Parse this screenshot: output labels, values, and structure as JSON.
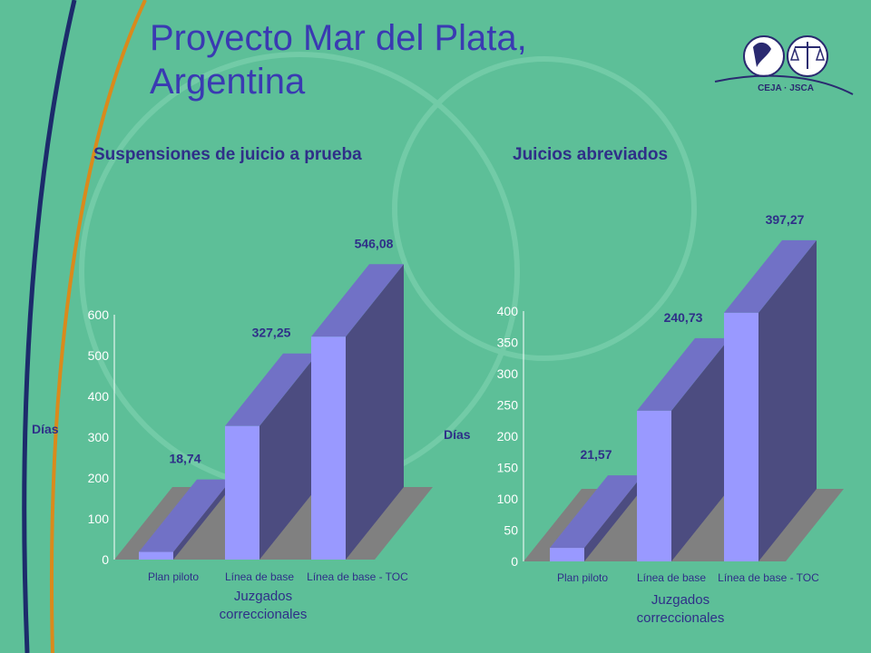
{
  "slide": {
    "title": "Proyecto Mar del Plata, Argentina",
    "logo_text": "CEJA  ·  JSCA"
  },
  "colors": {
    "background": "#5dbf98",
    "title": "#3a3ab2",
    "bar_front": "#9999ff",
    "bar_top": "#7171c6",
    "bar_side": "#4c4c80",
    "floor": "#808080",
    "axis_text": "#ffffff",
    "label_text": "#2f2f88"
  },
  "chart_data": [
    {
      "type": "bar",
      "title": "Suspensiones de juicio a prueba",
      "categories": [
        "Plan piloto",
        "Línea de base",
        "Línea de base - TOC"
      ],
      "values": [
        18.74,
        327.25,
        546.08
      ],
      "value_labels": [
        "18,74",
        "327,25",
        "546,08"
      ],
      "ylabel": "Días",
      "xlabel": "Juzgados correccionales",
      "xlabel_lines": [
        "Juzgados",
        "correccionales"
      ],
      "ylim": [
        0,
        600
      ],
      "yticks": [
        0,
        100,
        200,
        300,
        400,
        500,
        600
      ],
      "grid": false,
      "style": "3d"
    },
    {
      "type": "bar",
      "title": "Juicios abreviados",
      "categories": [
        "Plan piloto",
        "Línea de base",
        "Línea de base - TOC"
      ],
      "values": [
        21.57,
        240.73,
        397.27
      ],
      "value_labels": [
        "21,57",
        "240,73",
        "397,27"
      ],
      "ylabel": "Días",
      "xlabel": "Juzgados correccionales",
      "xlabel_lines": [
        "Juzgados",
        "correccionales"
      ],
      "ylim": [
        0,
        400
      ],
      "yticks": [
        0,
        50,
        100,
        150,
        200,
        250,
        300,
        350,
        400
      ],
      "grid": false,
      "style": "3d"
    }
  ]
}
